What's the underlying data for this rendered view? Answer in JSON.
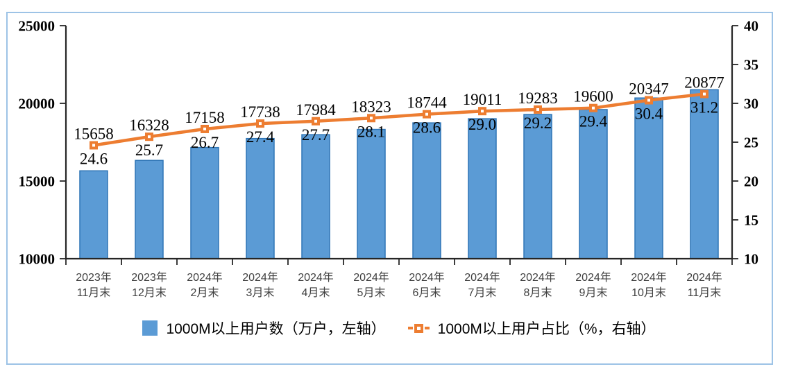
{
  "chart_data": {
    "type": "bar",
    "subtype": "combo-bar-line-dual-axis",
    "title": "",
    "categories": [
      [
        "2023年",
        "11月末"
      ],
      [
        "2023年",
        "12月末"
      ],
      [
        "2024年",
        "2月末"
      ],
      [
        "2024年",
        "3月末"
      ],
      [
        "2024年",
        "4月末"
      ],
      [
        "2024年",
        "5月末"
      ],
      [
        "2024年",
        "6月末"
      ],
      [
        "2024年",
        "7月末"
      ],
      [
        "2024年",
        "8月末"
      ],
      [
        "2024年",
        "9月末"
      ],
      [
        "2024年",
        "10月末"
      ],
      [
        "2024年",
        "11月末"
      ]
    ],
    "series": [
      {
        "name": "1000M以上用户数（万户，左轴）",
        "type": "bar",
        "axis": "left",
        "values": [
          15658,
          16328,
          17158,
          17738,
          17984,
          18323,
          18744,
          19011,
          19283,
          19600,
          20347,
          20877
        ],
        "color": "#5B9BD5",
        "border_color": "#2E75B6"
      },
      {
        "name": "1000M以上用户占比（%，右轴）",
        "type": "line",
        "axis": "right",
        "values": [
          24.6,
          25.7,
          26.7,
          27.4,
          27.7,
          28.1,
          28.6,
          29.0,
          29.2,
          29.4,
          30.4,
          31.2
        ],
        "labels": [
          "24.6",
          "25.7",
          "26.7",
          "27.4",
          "27.7",
          "28.1",
          "28.6",
          "29.0",
          "29.2",
          "29.4",
          "30.4",
          "31.2"
        ],
        "color": "#ED7D31",
        "marker": "square-open"
      }
    ],
    "left_axis": {
      "min": 10000,
      "max": 25000,
      "ticks": [
        10000,
        15000,
        20000,
        25000
      ]
    },
    "right_axis": {
      "min": 10,
      "max": 40,
      "ticks": [
        10,
        15,
        20,
        25,
        30,
        35,
        40
      ]
    },
    "grid": false,
    "legend_position": "bottom"
  },
  "colors": {
    "bar_fill": "#5B9BD5",
    "bar_border": "#2E75B6",
    "line": "#ED7D31",
    "frame_border": "#9DC3E6",
    "axis": "#262626",
    "tick_label": "#000000",
    "category_label": "#404040"
  }
}
